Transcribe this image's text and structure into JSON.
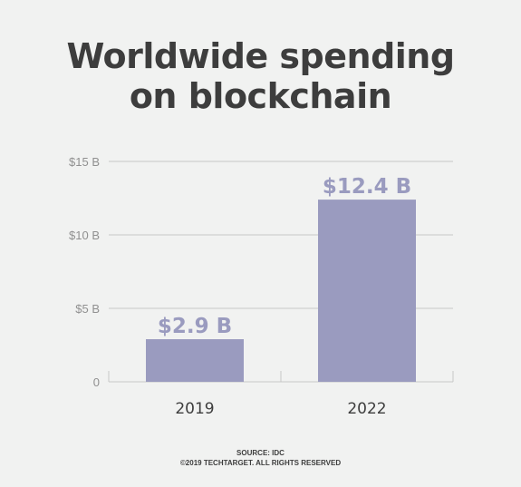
{
  "title_lines": [
    "Worldwide spending",
    "on blockchain"
  ],
  "source_lines": [
    "SOURCE: IDC",
    "©2019 TECHTARGET. ALL RIGHTS RESERVED"
  ],
  "colors": {
    "background": "#f1f2f1",
    "bar": "#9a9bbf",
    "value_label": "#9a9bbf",
    "title": "#3d3d3d",
    "grid": "#c8c8c8",
    "tick_label": "#909090",
    "category_label": "#3d3d3d"
  },
  "chart_data": {
    "type": "bar",
    "title": "Worldwide spending on blockchain",
    "categories": [
      "2019",
      "2022"
    ],
    "values": [
      2.9,
      12.4
    ],
    "value_labels": [
      "$2.9 B",
      "$12.4 B"
    ],
    "y_ticks": [
      0,
      5,
      10,
      15
    ],
    "y_tick_labels": [
      "0",
      "$5 B",
      "$10 B",
      "$15 B"
    ],
    "ylim": [
      0,
      15
    ],
    "grid": true,
    "xlabel": "",
    "ylabel": ""
  }
}
